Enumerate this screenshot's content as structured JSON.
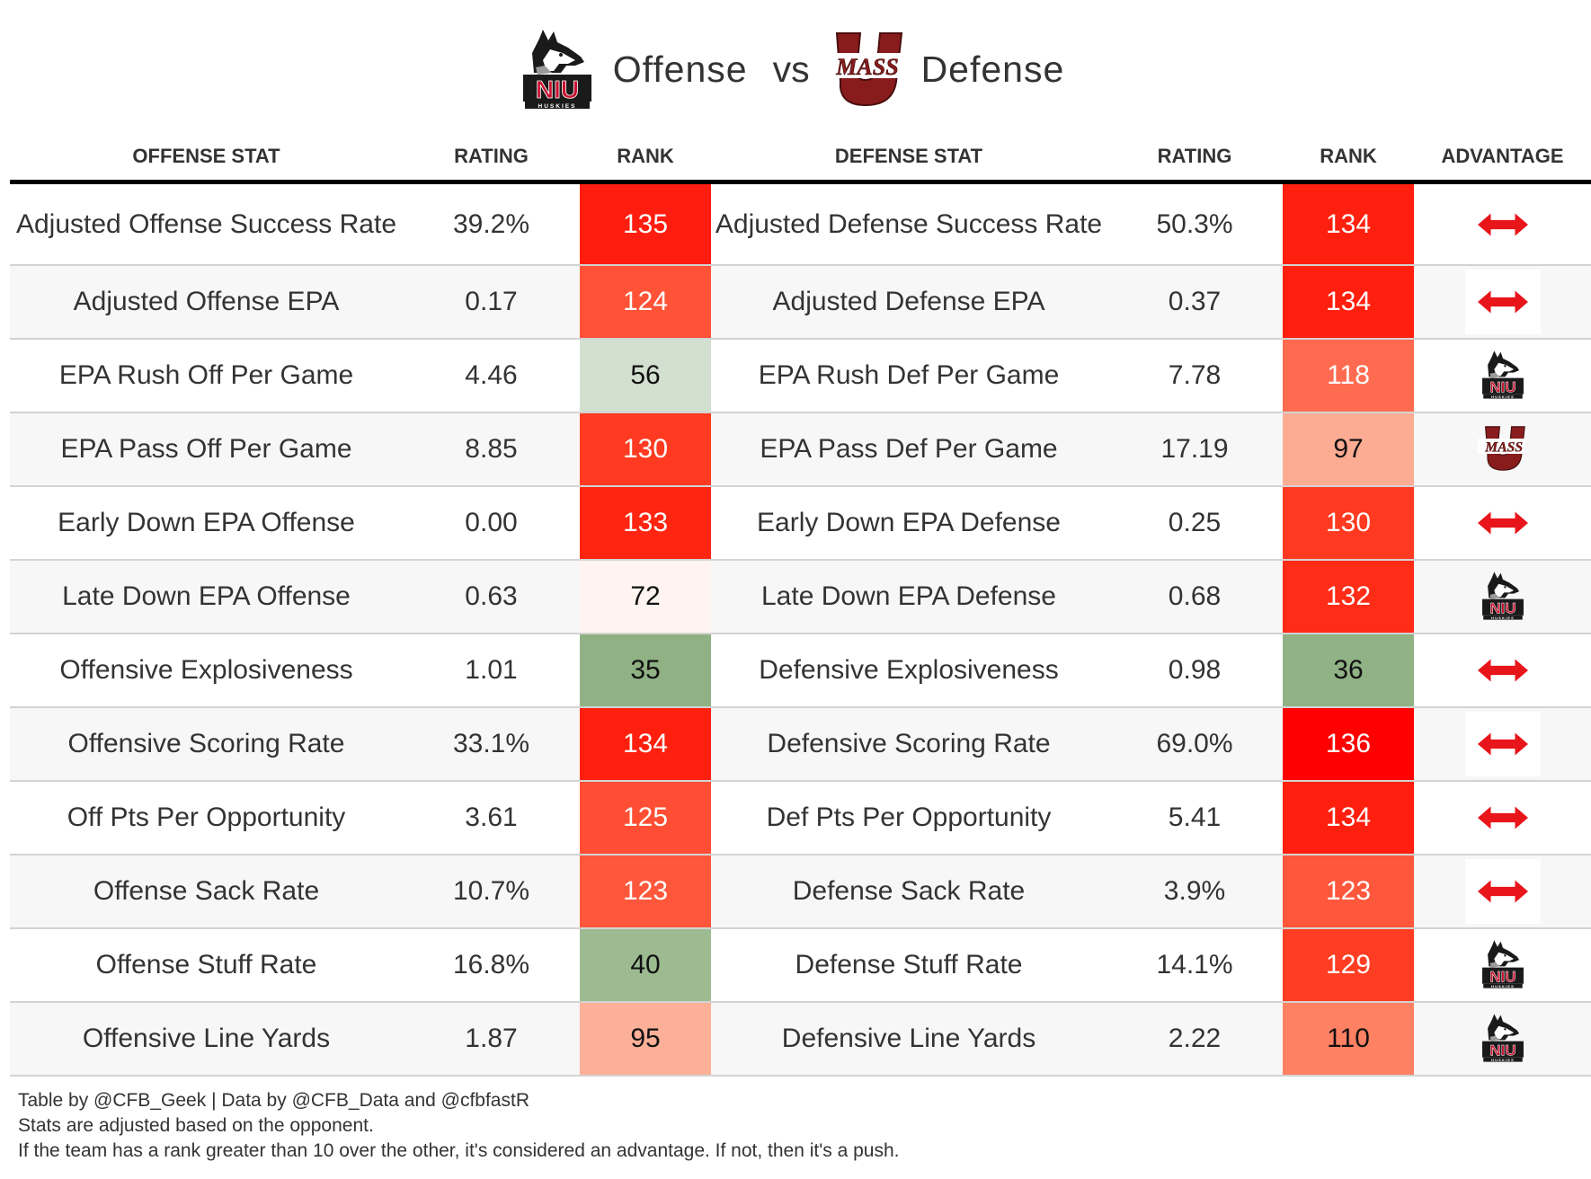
{
  "title": {
    "left_team": "NIU",
    "left_label": "Offense",
    "vs": "vs",
    "right_team": "UMass",
    "right_label": "Defense"
  },
  "columns": [
    "Offense Stat",
    "Rating",
    "Rank",
    "Defense Stat",
    "Rating",
    "Rank",
    "Advantage"
  ],
  "rows": [
    {
      "off_stat": "Adjusted Offense Success Rate",
      "off_rating": "39.2%",
      "off_rank": "135",
      "off_color": "#fe1d0f",
      "def_stat": "Adjusted Defense Success Rate",
      "def_rating": "50.3%",
      "def_rank": "134",
      "def_color": "#ff1f0e",
      "advantage": "push"
    },
    {
      "off_stat": "Adjusted Offense EPA",
      "off_rating": "0.17",
      "off_rank": "124",
      "off_color": "#ff5237",
      "def_stat": "Adjusted Defense EPA",
      "def_rating": "0.37",
      "def_rank": "134",
      "def_color": "#ff1f0e",
      "advantage": "push"
    },
    {
      "off_stat": "EPA Rush Off Per Game",
      "off_rating": "4.46",
      "off_rank": "56",
      "off_color": "#d3e0cf",
      "def_stat": "EPA Rush Def Per Game",
      "def_rating": "7.78",
      "def_rank": "118",
      "def_color": "#ff6b50",
      "advantage": "NIU"
    },
    {
      "off_stat": "EPA Pass Off Per Game",
      "off_rating": "8.85",
      "off_rank": "130",
      "off_color": "#ff3a20",
      "def_stat": "EPA Pass Def Per Game",
      "def_rating": "17.19",
      "def_rank": "97",
      "def_color": "#fdac94",
      "advantage": "UMass"
    },
    {
      "off_stat": "Early Down EPA Offense",
      "off_rating": "0.00",
      "off_rank": "133",
      "off_color": "#ff2511",
      "def_stat": "Early Down EPA Defense",
      "def_rating": "0.25",
      "def_rank": "130",
      "def_color": "#ff3a20",
      "advantage": "push"
    },
    {
      "off_stat": "Late Down EPA Offense",
      "off_rating": "0.63",
      "off_rank": "72",
      "off_color": "#fff4ef",
      "def_stat": "Late Down EPA Defense",
      "def_rating": "0.68",
      "def_rank": "132",
      "def_color": "#ff2c17",
      "advantage": "NIU"
    },
    {
      "off_stat": "Offensive Explosiveness",
      "off_rating": "1.01",
      "off_rank": "35",
      "off_color": "#8fb184",
      "def_stat": "Defensive Explosiveness",
      "def_rating": "0.98",
      "def_rank": "36",
      "def_color": "#90b285",
      "advantage": "push"
    },
    {
      "off_stat": "Offensive Scoring Rate",
      "off_rating": "33.1%",
      "off_rank": "134",
      "off_color": "#ff1f0e",
      "def_stat": "Defensive Scoring Rate",
      "def_rating": "69.0%",
      "def_rank": "136",
      "def_color": "#ff0000",
      "advantage": "push"
    },
    {
      "off_stat": "Off Pts Per Opportunity",
      "off_rating": "3.61",
      "off_rank": "125",
      "off_color": "#ff4e33",
      "def_stat": "Def Pts Per Opportunity",
      "def_rating": "5.41",
      "def_rank": "134",
      "def_color": "#ff1f0e",
      "advantage": "push"
    },
    {
      "off_stat": "Offense Sack Rate",
      "off_rating": "10.7%",
      "off_rank": "123",
      "off_color": "#ff573b",
      "def_stat": "Defense Sack Rate",
      "def_rating": "3.9%",
      "def_rank": "123",
      "def_color": "#ff573b",
      "advantage": "push"
    },
    {
      "off_stat": "Offense Stuff Rate",
      "off_rating": "16.8%",
      "off_rank": "40",
      "off_color": "#9dbb91",
      "def_stat": "Defense Stuff Rate",
      "def_rating": "14.1%",
      "def_rank": "129",
      "def_color": "#ff3d23",
      "advantage": "NIU"
    },
    {
      "off_stat": "Offensive Line Yards",
      "off_rating": "1.87",
      "off_rank": "95",
      "off_color": "#fdb098",
      "def_stat": "Defensive Line Yards",
      "def_rating": "2.22",
      "def_rank": "110",
      "def_color": "#ff8163",
      "advantage": "NIU"
    }
  ],
  "footer": {
    "line1": "Table by @CFB_Geek | Data by @CFB_Data and @cfbfastR",
    "line2": "Stats are adjusted based on the opponent.",
    "line3": "If the team has a rank greater than 10 over the other, it's considered an advantage. If not, then it's a push."
  },
  "icons": {
    "push": "double-arrow-icon",
    "NIU": "niu-huskies-logo",
    "UMass": "umass-logo"
  },
  "colors": {
    "arrow_red": "#e8151b",
    "niu_red": "#c8102e",
    "umass_maroon": "#881c1c"
  }
}
